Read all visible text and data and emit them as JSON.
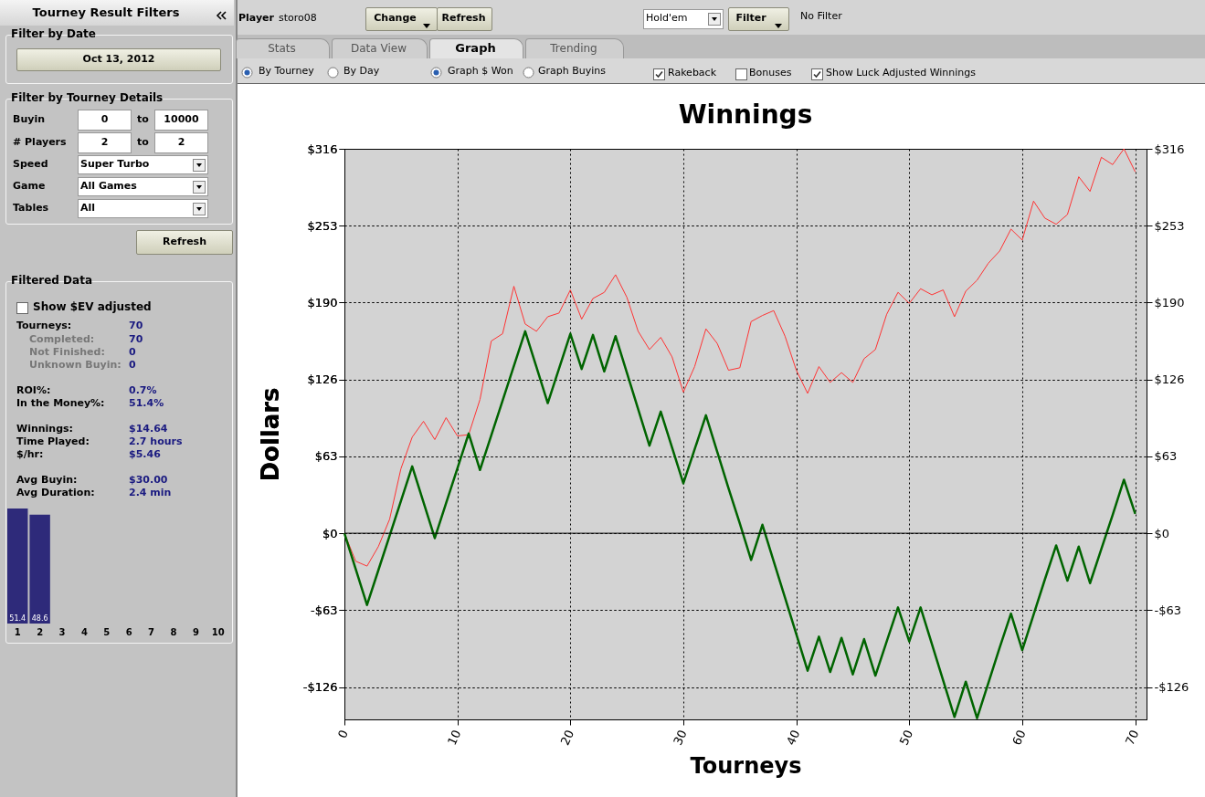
{
  "chart_data": [
    {
      "type": "other",
      "annotations": [
        "Tourney Result Filters",
        "Filter by Date",
        "Oct 13, 2012",
        "Filter by Tourney Details",
        "Buyin",
        "0",
        "to",
        "10000",
        "# Players",
        "2",
        "to",
        "2",
        "Speed",
        "Super Turbo",
        "Game",
        "All Games",
        "Tables",
        "All",
        "Refresh",
        "Filtered Data",
        "Show $EV adjusted",
        "Tourneys:",
        "70",
        "Completed:",
        "70",
        "Not Finished:",
        "0",
        "Unknown Buyin:",
        "0",
        "ROI%:",
        "0.7%",
        "In the Money%:",
        "51.4%",
        "Winnings:",
        "$14.64",
        "Time Played:",
        "2.7 hours",
        "$/hr:",
        "$5.46",
        "Avg Buyin:",
        "$30.00",
        "Avg Duration:",
        "2.4 min",
        "Player",
        "storo08",
        "Change",
        "Refresh",
        "Hold'em",
        "Filter",
        "No Filter",
        "Stats",
        "Data View",
        "Graph",
        "Trending",
        "By Tourney",
        "By Day",
        "Graph $ Won",
        "Graph Buyins",
        "Rakeback",
        "Bonuses",
        "Show Luck Adjusted Winnings"
      ]
    },
    {
      "type": "bar",
      "categories": [
        "1",
        "2",
        "3",
        "4",
        "5",
        "6",
        "7",
        "8",
        "9",
        "10"
      ],
      "values": [
        51.4,
        48.6,
        null,
        null,
        null,
        null,
        null,
        null,
        null,
        null
      ],
      "color": "#2e2a7a",
      "data_labels": true
    },
    {
      "type": "line",
      "title": "Winnings",
      "xlabel": "Tourneys",
      "ylabel": "Dollars",
      "x": [
        0,
        1,
        2,
        3,
        4,
        5,
        6,
        7,
        8,
        9,
        10,
        11,
        12,
        13,
        14,
        15,
        16,
        17,
        18,
        19,
        20,
        21,
        22,
        23,
        24,
        25,
        26,
        27,
        28,
        29,
        30,
        31,
        32,
        33,
        34,
        35,
        36,
        37,
        38,
        39,
        40,
        41,
        42,
        43,
        44,
        45,
        46,
        47,
        48,
        49,
        50,
        51,
        52,
        53,
        54,
        55,
        56,
        57,
        58,
        59,
        60,
        61,
        62,
        63,
        64,
        65,
        66,
        67,
        68,
        69,
        70
      ],
      "series": [
        {
          "color": "#ff3333",
          "values": [
            0,
            -23,
            -27,
            -11,
            11.5,
            53,
            79,
            92,
            77,
            95,
            80,
            81,
            110,
            158,
            164,
            203,
            172,
            166,
            178,
            181,
            200,
            176,
            193,
            198,
            212.5,
            194,
            166,
            151,
            161,
            145,
            116,
            137,
            168,
            156,
            134,
            136,
            174,
            179,
            183,
            162,
            134,
            115,
            137,
            124,
            132,
            124,
            143.5,
            151,
            180,
            198,
            189,
            201,
            196,
            200,
            178,
            199,
            208,
            222,
            232,
            250,
            241,
            273,
            259,
            254,
            262,
            293,
            281,
            309,
            303,
            316,
            297
          ]
        },
        {
          "color": "#006400",
          "values": [
            0,
            -29.5,
            -59,
            -30.5,
            -2,
            26.5,
            55,
            25.5,
            -4,
            24.7,
            53.3,
            82,
            52,
            80.5,
            109,
            137.5,
            166,
            136.5,
            107,
            135.5,
            164,
            135,
            163,
            133,
            162,
            132,
            102,
            72,
            100,
            70.5,
            41,
            69,
            97,
            67,
            37,
            8,
            -22,
            7,
            -23,
            -53,
            -83,
            -113,
            -85,
            -114,
            -86,
            -116,
            -87,
            -117,
            -89,
            -61,
            -89,
            -61,
            -91,
            -121,
            -151,
            -122,
            -152,
            -123,
            -94,
            -66,
            -96,
            -67,
            -38,
            -10,
            -39,
            -11,
            -41,
            -13,
            15,
            44,
            16
          ]
        }
      ],
      "xlim": [
        0,
        71
      ],
      "xticks": [
        0,
        10,
        20,
        30,
        40,
        50,
        60,
        70
      ],
      "ylim": [
        -153,
        316
      ],
      "yticks": [
        {
          "value": -126.4,
          "label": "-$126"
        },
        {
          "value": -63.2,
          "label": "-$63"
        },
        {
          "value": 0,
          "label": "$0"
        },
        {
          "value": 63.2,
          "label": "$63"
        },
        {
          "value": 126.4,
          "label": "$126"
        },
        {
          "value": 189.6,
          "label": "$190"
        },
        {
          "value": 252.8,
          "label": "$253"
        },
        {
          "value": 316,
          "label": "$316"
        }
      ],
      "y2lim": [
        -153,
        316
      ],
      "y2ticks": [
        {
          "value": -126.4,
          "label": "-$126"
        },
        {
          "value": -63.2,
          "label": "-$63"
        },
        {
          "value": 0,
          "label": "$0"
        },
        {
          "value": 63.2,
          "label": "$63"
        },
        {
          "value": 126.4,
          "label": "$126"
        },
        {
          "value": 189.6,
          "label": "$190"
        },
        {
          "value": 252.8,
          "label": "$253"
        },
        {
          "value": 316,
          "label": "$316"
        }
      ],
      "grid": true,
      "ref_lines": [
        {
          "axis": "y",
          "value": 0,
          "color": "#000000"
        }
      ]
    }
  ]
}
